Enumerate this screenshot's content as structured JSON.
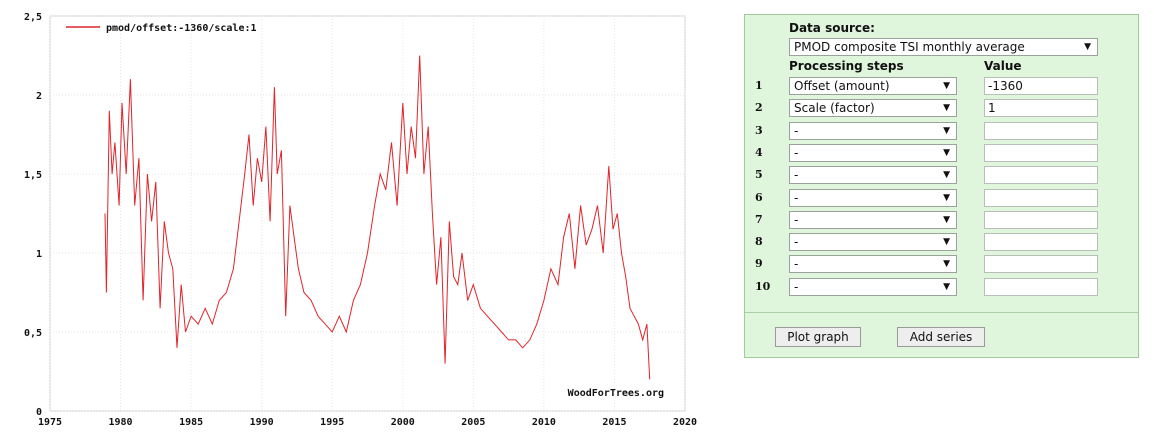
{
  "chart_data": {
    "type": "line",
    "legend": "pmod/offset:-1360/scale:1",
    "watermark": "WoodForTrees.org",
    "x_ticks": [
      "1975",
      "1980",
      "1985",
      "1990",
      "1995",
      "2000",
      "2005",
      "2010",
      "2015",
      "2020"
    ],
    "y_ticks": [
      "0",
      "0,5",
      "1",
      "1,5",
      "2",
      "2,5"
    ],
    "xlim": [
      1975,
      2020
    ],
    "ylim": [
      0,
      2.5
    ],
    "grid": true,
    "line_color": "#e0242a",
    "series": [
      {
        "name": "pmod/offset:-1360/scale:1",
        "x": [
          1978.9,
          1979.0,
          1979.2,
          1979.4,
          1979.6,
          1979.9,
          1980.1,
          1980.4,
          1980.7,
          1981.0,
          1981.3,
          1981.6,
          1981.9,
          1982.2,
          1982.5,
          1982.8,
          1983.1,
          1983.4,
          1983.7,
          1984.0,
          1984.3,
          1984.6,
          1985.0,
          1985.5,
          1986.0,
          1986.5,
          1987.0,
          1987.5,
          1988.0,
          1988.4,
          1988.8,
          1989.1,
          1989.4,
          1989.7,
          1990.0,
          1990.3,
          1990.6,
          1990.9,
          1991.1,
          1991.4,
          1991.7,
          1992.0,
          1992.3,
          1992.6,
          1993.0,
          1993.5,
          1994.0,
          1994.5,
          1995.0,
          1995.5,
          1996.0,
          1996.5,
          1997.0,
          1997.5,
          1998.0,
          1998.4,
          1998.8,
          1999.2,
          1999.6,
          2000.0,
          2000.3,
          2000.6,
          2000.9,
          2001.2,
          2001.5,
          2001.8,
          2002.1,
          2002.4,
          2002.7,
          2003.0,
          2003.3,
          2003.6,
          2003.9,
          2004.2,
          2004.6,
          2005.0,
          2005.5,
          2006.0,
          2006.5,
          2007.0,
          2007.5,
          2008.0,
          2008.5,
          2009.0,
          2009.5,
          2010.0,
          2010.5,
          2011.0,
          2011.4,
          2011.8,
          2012.2,
          2012.6,
          2013.0,
          2013.4,
          2013.8,
          2014.2,
          2014.6,
          2014.9,
          2015.2,
          2015.5,
          2015.8,
          2016.1,
          2016.4,
          2016.7,
          2017.0,
          2017.3,
          2017.5
        ],
        "values": [
          1.25,
          0.75,
          1.9,
          1.5,
          1.7,
          1.3,
          1.95,
          1.5,
          2.1,
          1.3,
          1.6,
          0.7,
          1.5,
          1.2,
          1.45,
          0.65,
          1.2,
          1.0,
          0.9,
          0.4,
          0.8,
          0.5,
          0.6,
          0.55,
          0.65,
          0.55,
          0.7,
          0.75,
          0.9,
          1.2,
          1.5,
          1.75,
          1.3,
          1.6,
          1.45,
          1.8,
          1.2,
          2.05,
          1.5,
          1.65,
          0.6,
          1.3,
          1.1,
          0.9,
          0.75,
          0.7,
          0.6,
          0.55,
          0.5,
          0.6,
          0.5,
          0.7,
          0.8,
          1.0,
          1.3,
          1.5,
          1.4,
          1.7,
          1.3,
          1.95,
          1.5,
          1.8,
          1.6,
          2.25,
          1.5,
          1.8,
          1.25,
          0.8,
          1.1,
          0.3,
          1.2,
          0.85,
          0.8,
          1.0,
          0.7,
          0.8,
          0.65,
          0.6,
          0.55,
          0.5,
          0.45,
          0.45,
          0.4,
          0.45,
          0.55,
          0.7,
          0.9,
          0.8,
          1.1,
          1.25,
          0.9,
          1.3,
          1.05,
          1.15,
          1.3,
          1.0,
          1.55,
          1.15,
          1.25,
          1.0,
          0.85,
          0.65,
          0.6,
          0.55,
          0.45,
          0.55,
          0.2
        ]
      }
    ]
  },
  "panel": {
    "data_source_label": "Data source:",
    "data_source_value": "PMOD composite TSI monthly average",
    "processing_label": "Processing steps",
    "value_label": "Value",
    "rows": [
      {
        "num": "1",
        "step": "Offset (amount)",
        "value": "-1360"
      },
      {
        "num": "2",
        "step": "Scale (factor)",
        "value": "1"
      },
      {
        "num": "3",
        "step": "-",
        "value": ""
      },
      {
        "num": "4",
        "step": "-",
        "value": ""
      },
      {
        "num": "5",
        "step": "-",
        "value": ""
      },
      {
        "num": "6",
        "step": "-",
        "value": ""
      },
      {
        "num": "7",
        "step": "-",
        "value": ""
      },
      {
        "num": "8",
        "step": "-",
        "value": ""
      },
      {
        "num": "9",
        "step": "-",
        "value": ""
      },
      {
        "num": "10",
        "step": "-",
        "value": ""
      }
    ],
    "plot_button": "Plot graph",
    "add_button": "Add series"
  }
}
